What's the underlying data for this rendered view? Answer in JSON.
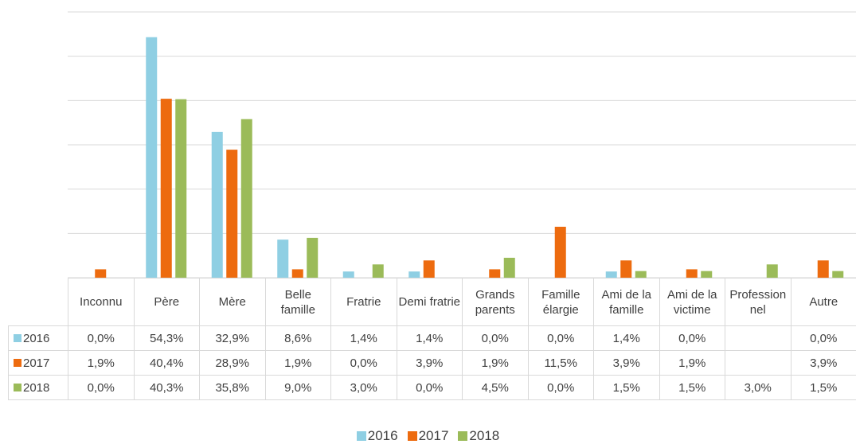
{
  "chart_data": {
    "type": "bar",
    "categories": [
      "Inconnu",
      "Père",
      "Mère",
      "Belle famille",
      "Fratrie",
      "Demi fratrie",
      "Grands parents",
      "Famille élargie",
      "Ami de la famille",
      "Ami de la victime",
      "Professionnel",
      "Autre"
    ],
    "series": [
      {
        "name": "2016",
        "color": "#8fcfe3",
        "values": [
          0.0,
          54.3,
          32.9,
          8.6,
          1.4,
          1.4,
          0.0,
          0.0,
          1.4,
          0.0,
          null,
          0.0
        ],
        "value_labels": [
          "0,0%",
          "54,3%",
          "32,9%",
          "8,6%",
          "1,4%",
          "1,4%",
          "0,0%",
          "0,0%",
          "1,4%",
          "0,0%",
          null,
          "0,0%"
        ]
      },
      {
        "name": "2017",
        "color": "#ed6b0f",
        "values": [
          1.9,
          40.4,
          28.9,
          1.9,
          0.0,
          3.9,
          1.9,
          11.5,
          3.9,
          1.9,
          null,
          3.9
        ],
        "value_labels": [
          "1,9%",
          "40,4%",
          "28,9%",
          "1,9%",
          "0,0%",
          "3,9%",
          "1,9%",
          "11,5%",
          "3,9%",
          "1,9%",
          null,
          "3,9%"
        ]
      },
      {
        "name": "2018",
        "color": "#9bbb59",
        "values": [
          0.0,
          40.3,
          35.8,
          9.0,
          3.0,
          0.0,
          4.5,
          0.0,
          1.5,
          1.5,
          3.0,
          1.5
        ],
        "value_labels": [
          "0,0%",
          "40,3%",
          "35,8%",
          "9,0%",
          "3,0%",
          "0,0%",
          "4,5%",
          "0,0%",
          "1,5%",
          "1,5%",
          "3,0%",
          "1,5%"
        ]
      }
    ],
    "ylim": [
      0,
      60
    ],
    "yticks": [
      0,
      10,
      20,
      30,
      40,
      50,
      60
    ],
    "grid": true,
    "legend": "bottom"
  }
}
